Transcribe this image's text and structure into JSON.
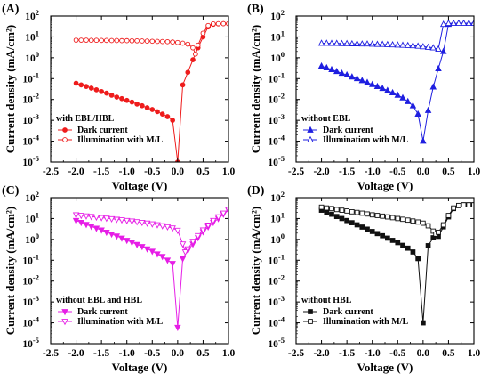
{
  "chart_data": [
    {
      "type": "line",
      "panel_label": "(A)",
      "xlabel": "Voltage (V)",
      "ylabel": "Current density (mA/cm²)",
      "xlim": [
        -2.5,
        1.0
      ],
      "ylim_log10": [
        -5,
        2
      ],
      "y_scale": "log",
      "x_ticks": [
        "-2.5",
        "-2.0",
        "-1.5",
        "-1.0",
        "-0.5",
        "0.0",
        "0.5",
        "1.0"
      ],
      "y_ticks": [
        "10",
        "10",
        "10",
        "10",
        "10",
        "10",
        "10",
        "10"
      ],
      "y_tick_exponents": [
        "-5",
        "-4",
        "-3",
        "-2",
        "-1",
        "0",
        "1",
        "2"
      ],
      "legend_title": "with EBL/HBL",
      "legend_placement": "bottom-left",
      "color": "#ee1c1c",
      "series": [
        {
          "name": "Dark current",
          "marker": "circle-filled",
          "x": [
            -2.0,
            -1.9,
            -1.8,
            -1.7,
            -1.6,
            -1.5,
            -1.4,
            -1.3,
            -1.2,
            -1.1,
            -1.0,
            -0.9,
            -0.8,
            -0.7,
            -0.6,
            -0.5,
            -0.4,
            -0.3,
            -0.2,
            -0.1,
            0.0,
            0.1,
            0.2,
            0.3,
            0.4,
            0.5,
            0.6,
            0.7,
            0.8,
            0.9,
            1.0
          ],
          "y": [
            0.06,
            0.05,
            0.042,
            0.035,
            0.029,
            0.024,
            0.02,
            0.016,
            0.013,
            0.011,
            0.009,
            0.0075,
            0.006,
            0.005,
            0.004,
            0.0033,
            0.0026,
            0.002,
            0.0015,
            0.001,
            1e-05,
            0.05,
            0.2,
            0.8,
            3,
            10,
            30,
            40,
            42,
            43,
            43
          ]
        },
        {
          "name": "Illumination with M/L",
          "marker": "circle-open",
          "x": [
            -2.0,
            -1.9,
            -1.8,
            -1.7,
            -1.6,
            -1.5,
            -1.4,
            -1.3,
            -1.2,
            -1.1,
            -1.0,
            -0.9,
            -0.8,
            -0.7,
            -0.6,
            -0.5,
            -0.4,
            -0.3,
            -0.2,
            -0.1,
            0.0,
            0.1,
            0.2,
            0.3,
            0.35,
            0.4,
            0.5,
            0.6,
            0.7,
            0.8,
            0.9,
            1.0
          ],
          "y": [
            7,
            7,
            7,
            6.9,
            6.9,
            6.8,
            6.8,
            6.7,
            6.7,
            6.6,
            6.6,
            6.5,
            6.5,
            6.4,
            6.3,
            6.2,
            6.1,
            6.0,
            5.9,
            5.7,
            5.4,
            5.0,
            4.5,
            3,
            1.5,
            4,
            15,
            35,
            42,
            43,
            43,
            43
          ]
        }
      ]
    },
    {
      "type": "line",
      "panel_label": "(B)",
      "xlabel": "Voltage (V)",
      "ylabel": "Current density (mA/cm²)",
      "xlim": [
        -2.5,
        1.0
      ],
      "ylim_log10": [
        -5,
        2
      ],
      "y_scale": "log",
      "x_ticks": [
        "-2.5",
        "-2.0",
        "-1.5",
        "-1.0",
        "-0.5",
        "0.0",
        "0.5",
        "1.0"
      ],
      "y_ticks": [
        "10",
        "10",
        "10",
        "10",
        "10",
        "10",
        "10",
        "10"
      ],
      "y_tick_exponents": [
        "-5",
        "-4",
        "-3",
        "-2",
        "-1",
        "0",
        "1",
        "2"
      ],
      "legend_title": "without EBL",
      "legend_placement": "bottom-left",
      "color": "#1f1fe0",
      "series": [
        {
          "name": "Dark current",
          "marker": "triangle-filled",
          "x": [
            -2.0,
            -1.9,
            -1.8,
            -1.7,
            -1.6,
            -1.5,
            -1.4,
            -1.3,
            -1.2,
            -1.1,
            -1.0,
            -0.9,
            -0.8,
            -0.7,
            -0.6,
            -0.5,
            -0.4,
            -0.3,
            -0.2,
            -0.1,
            0.0,
            0.1,
            0.2,
            0.3,
            0.4,
            0.5,
            0.6,
            0.7,
            0.8,
            0.9,
            1.0
          ],
          "y": [
            0.4,
            0.33,
            0.27,
            0.22,
            0.18,
            0.15,
            0.12,
            0.1,
            0.08,
            0.065,
            0.052,
            0.042,
            0.034,
            0.027,
            0.021,
            0.016,
            0.012,
            0.008,
            0.005,
            0.002,
            0.0001,
            0.003,
            0.04,
            0.3,
            2,
            40,
            45,
            45,
            45,
            45,
            45
          ]
        },
        {
          "name": "Illumination with M/L",
          "marker": "triangle-open",
          "x": [
            -2.0,
            -1.9,
            -1.8,
            -1.7,
            -1.6,
            -1.5,
            -1.4,
            -1.3,
            -1.2,
            -1.1,
            -1.0,
            -0.9,
            -0.8,
            -0.7,
            -0.6,
            -0.5,
            -0.4,
            -0.3,
            -0.2,
            -0.1,
            0.0,
            0.1,
            0.2,
            0.3,
            0.4,
            0.5,
            0.6,
            0.7,
            0.8,
            0.9,
            1.0
          ],
          "y": [
            5,
            5,
            4.9,
            4.9,
            4.8,
            4.8,
            4.7,
            4.7,
            4.6,
            4.6,
            4.5,
            4.4,
            4.4,
            4.3,
            4.2,
            4.1,
            4.0,
            3.9,
            3.8,
            3.6,
            3.4,
            3.2,
            3.0,
            2.6,
            40,
            45,
            45,
            45,
            45,
            45,
            45
          ]
        }
      ]
    },
    {
      "type": "line",
      "panel_label": "(C)",
      "xlabel": "Voltage (V)",
      "ylabel": "Current density (mA/cm²)",
      "xlim": [
        -2.5,
        1.0
      ],
      "ylim_log10": [
        -5,
        2
      ],
      "y_scale": "log",
      "x_ticks": [
        "-2.5",
        "-2.0",
        "-1.5",
        "-1.0",
        "-0.5",
        "0.0",
        "0.5",
        "1.0"
      ],
      "y_ticks": [
        "10",
        "10",
        "10",
        "10",
        "10",
        "10",
        "10",
        "10"
      ],
      "y_tick_exponents": [
        "-5",
        "-4",
        "-3",
        "-2",
        "-1",
        "0",
        "1",
        "2"
      ],
      "legend_title": "without EBL and HBL",
      "legend_placement": "bottom-left",
      "color": "#e61ee6",
      "series": [
        {
          "name": "Dark current",
          "marker": "triangle-down-filled",
          "x": [
            -2.0,
            -1.9,
            -1.8,
            -1.7,
            -1.6,
            -1.5,
            -1.4,
            -1.3,
            -1.2,
            -1.1,
            -1.0,
            -0.9,
            -0.8,
            -0.7,
            -0.6,
            -0.5,
            -0.4,
            -0.3,
            -0.2,
            -0.1,
            0.0,
            0.1,
            0.2,
            0.3,
            0.4,
            0.5,
            0.6,
            0.7,
            0.8,
            0.9,
            1.0
          ],
          "y": [
            8,
            6.5,
            5.2,
            4.2,
            3.4,
            2.8,
            2.2,
            1.8,
            1.45,
            1.15,
            0.9,
            0.72,
            0.57,
            0.45,
            0.35,
            0.27,
            0.2,
            0.15,
            0.1,
            0.07,
            6e-05,
            0.12,
            0.3,
            0.6,
            1.2,
            2.3,
            4,
            6.5,
            10,
            16,
            25
          ]
        },
        {
          "name": "Illumination with M/L",
          "marker": "triangle-down-open",
          "x": [
            -2.0,
            -1.9,
            -1.8,
            -1.7,
            -1.6,
            -1.5,
            -1.4,
            -1.3,
            -1.2,
            -1.1,
            -1.0,
            -0.9,
            -0.8,
            -0.7,
            -0.6,
            -0.5,
            -0.4,
            -0.3,
            -0.2,
            -0.1,
            0.0,
            0.1,
            0.15,
            0.2,
            0.3,
            0.4,
            0.5,
            0.6,
            0.7,
            0.8,
            0.9,
            1.0
          ],
          "y": [
            15,
            14,
            13.2,
            12.4,
            11.7,
            11,
            10.3,
            9.7,
            9.1,
            8.6,
            8,
            7.5,
            7,
            6.5,
            6,
            5.5,
            5,
            4.5,
            4,
            3.5,
            2.7,
            0.6,
            0.25,
            0.35,
            0.8,
            1.5,
            2.8,
            4.8,
            8,
            12,
            18,
            27
          ]
        }
      ]
    },
    {
      "type": "line",
      "panel_label": "(D)",
      "xlabel": "Voltage (V)",
      "ylabel": "Current density (mA/cm²)",
      "xlim": [
        -2.5,
        1.0
      ],
      "ylim_log10": [
        -5,
        2
      ],
      "y_scale": "log",
      "x_ticks": [
        "-2.5",
        "-2.0",
        "-1.5",
        "-1.0",
        "-0.5",
        "0.0",
        "0.5",
        "1.0"
      ],
      "y_ticks": [
        "10",
        "10",
        "10",
        "10",
        "10",
        "10",
        "10",
        "10"
      ],
      "y_tick_exponents": [
        "-5",
        "-4",
        "-3",
        "-2",
        "-1",
        "0",
        "1",
        "2"
      ],
      "legend_title": "without HBL",
      "legend_placement": "bottom-left",
      "color": "#111111",
      "series": [
        {
          "name": "Dark current",
          "marker": "square-filled",
          "x": [
            -2.0,
            -1.9,
            -1.8,
            -1.7,
            -1.6,
            -1.5,
            -1.4,
            -1.3,
            -1.2,
            -1.1,
            -1.0,
            -0.9,
            -0.8,
            -0.7,
            -0.6,
            -0.5,
            -0.4,
            -0.3,
            -0.2,
            -0.1,
            0.0,
            0.1,
            0.2,
            0.3,
            0.4,
            0.5,
            0.6,
            0.7,
            0.8,
            0.9,
            1.0
          ],
          "y": [
            25,
            20,
            16,
            12.5,
            10,
            8,
            6.3,
            5,
            3.9,
            3.1,
            2.4,
            1.9,
            1.5,
            1.15,
            0.9,
            0.7,
            0.52,
            0.38,
            0.25,
            0.12,
            0.0001,
            0.5,
            1.2,
            1.4,
            4,
            12,
            30,
            42,
            45,
            45,
            45
          ]
        },
        {
          "name": "Illumination with M/L",
          "marker": "square-open",
          "x": [
            -2.0,
            -1.9,
            -1.8,
            -1.7,
            -1.6,
            -1.5,
            -1.4,
            -1.3,
            -1.2,
            -1.1,
            -1.0,
            -0.9,
            -0.8,
            -0.7,
            -0.6,
            -0.5,
            -0.4,
            -0.3,
            -0.2,
            -0.1,
            0.0,
            0.1,
            0.2,
            0.25,
            0.3,
            0.4,
            0.5,
            0.6,
            0.7,
            0.8,
            0.9,
            1.0
          ],
          "y": [
            35,
            32,
            30,
            27,
            25,
            23,
            21,
            19.5,
            18,
            16.5,
            15,
            14,
            13,
            12,
            11,
            10,
            9.2,
            8.4,
            7.6,
            6.8,
            6,
            4.5,
            2.5,
            1.8,
            2.2,
            5,
            14,
            32,
            42,
            45,
            45,
            45
          ]
        }
      ]
    }
  ]
}
